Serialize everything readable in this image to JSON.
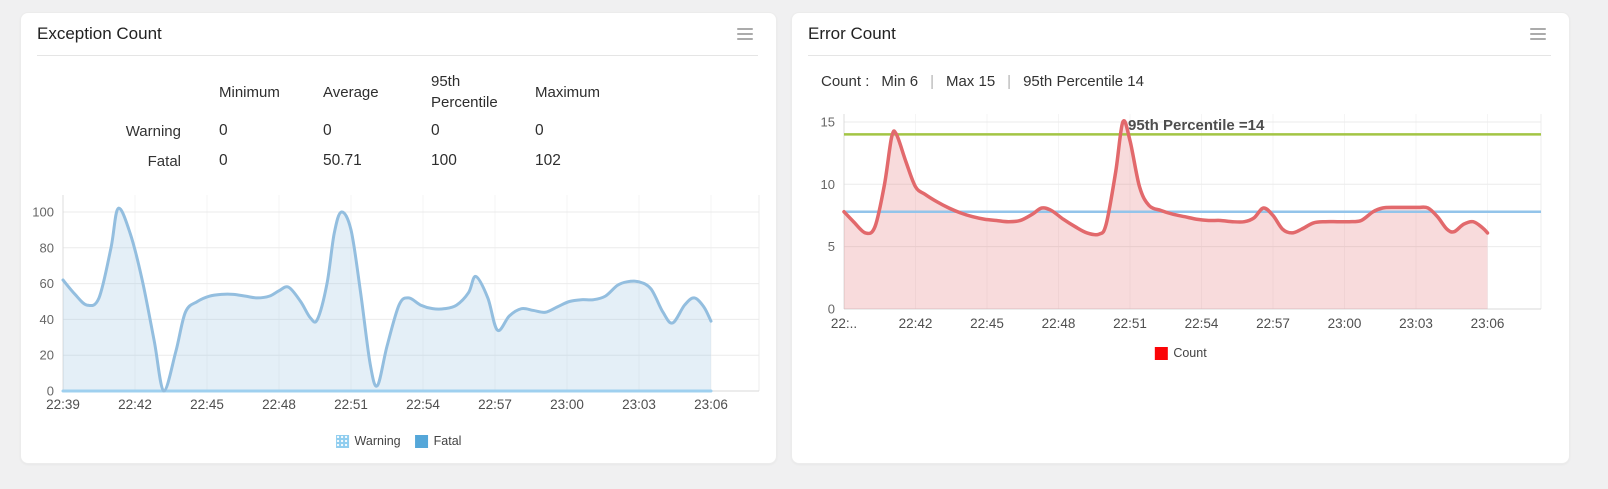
{
  "page": {
    "background": "#f0f0f1"
  },
  "left_panel": {
    "title": "Exception Count",
    "menu_icon": "hamburger-icon",
    "stats": {
      "columns": [
        "Minimum",
        "Average",
        "95th Percentile",
        "Maximum"
      ],
      "rows": [
        {
          "label": "Warning",
          "values": [
            "0",
            "0",
            "0",
            "0"
          ]
        },
        {
          "label": "Fatal",
          "values": [
            "0",
            "50.71",
            "100",
            "102"
          ]
        }
      ]
    },
    "legend": [
      {
        "label": "Warning",
        "color": "#8fcdef"
      },
      {
        "label": "Fatal",
        "color": "#55a7d9"
      }
    ]
  },
  "right_panel": {
    "title": "Error Count",
    "menu_icon": "hamburger-icon",
    "summary": {
      "prefix": "Count :",
      "items": [
        "Min 6",
        "Max 15",
        "95th Percentile 14"
      ],
      "separator": "|"
    },
    "annotation": "95th Percentile =14",
    "legend": [
      {
        "label": "Count",
        "color": "#fb0407"
      }
    ]
  },
  "chart_data": [
    {
      "type": "area",
      "title": "Exception Count",
      "xlabel": "",
      "ylabel": "",
      "x_ticks": [
        "22:39",
        "22:42",
        "22:45",
        "22:48",
        "22:51",
        "22:54",
        "22:57",
        "23:00",
        "23:03",
        "23:06"
      ],
      "y_ticks": [
        0,
        20,
        40,
        60,
        80,
        100
      ],
      "ylim": [
        0,
        110
      ],
      "x_minutes_range": [
        0,
        27
      ],
      "grid": true,
      "legend_position": "bottom",
      "series": [
        {
          "name": "Warning",
          "color": "#9fd0ef",
          "fill": "rgba(159,208,239,0.22)",
          "points": [
            [
              0,
              0
            ],
            [
              4.5,
              0
            ],
            [
              9,
              0
            ],
            [
              13.5,
              0
            ],
            [
              18,
              0
            ],
            [
              22.5,
              0
            ],
            [
              27,
              0
            ]
          ]
        },
        {
          "name": "Fatal",
          "color": "#93bedf",
          "fill": "rgba(147,190,223,0.25)",
          "points": [
            [
              0,
              62
            ],
            [
              0.5,
              54
            ],
            [
              1,
              48
            ],
            [
              1.5,
              52
            ],
            [
              2,
              80
            ],
            [
              2.3,
              102
            ],
            [
              2.8,
              88
            ],
            [
              3.3,
              62
            ],
            [
              3.8,
              28
            ],
            [
              4.2,
              0
            ],
            [
              4.7,
              22
            ],
            [
              5.1,
              44
            ],
            [
              5.6,
              50
            ],
            [
              6.1,
              53
            ],
            [
              6.6,
              54
            ],
            [
              7.1,
              54
            ],
            [
              7.6,
              53
            ],
            [
              8.1,
              52
            ],
            [
              8.6,
              53
            ],
            [
              9,
              56
            ],
            [
              9.4,
              58
            ],
            [
              9.9,
              50
            ],
            [
              10.3,
              41
            ],
            [
              10.6,
              40
            ],
            [
              11,
              60
            ],
            [
              11.3,
              88
            ],
            [
              11.6,
              100
            ],
            [
              12,
              90
            ],
            [
              12.4,
              55
            ],
            [
              12.8,
              15
            ],
            [
              13.1,
              3
            ],
            [
              13.5,
              25
            ],
            [
              14,
              48
            ],
            [
              14.4,
              52
            ],
            [
              14.9,
              48
            ],
            [
              15.4,
              46
            ],
            [
              15.9,
              46
            ],
            [
              16.4,
              48
            ],
            [
              16.9,
              55
            ],
            [
              17.2,
              64
            ],
            [
              17.7,
              52
            ],
            [
              18.1,
              34
            ],
            [
              18.6,
              42
            ],
            [
              19.1,
              46
            ],
            [
              19.6,
              45
            ],
            [
              20.1,
              44
            ],
            [
              20.6,
              47
            ],
            [
              21.1,
              50
            ],
            [
              21.6,
              51
            ],
            [
              22.1,
              51
            ],
            [
              22.6,
              53
            ],
            [
              23.1,
              59
            ],
            [
              23.5,
              61
            ],
            [
              24,
              61
            ],
            [
              24.5,
              57
            ],
            [
              25,
              44
            ],
            [
              25.4,
              38
            ],
            [
              25.9,
              48
            ],
            [
              26.3,
              52
            ],
            [
              26.7,
              47
            ],
            [
              27,
              39
            ]
          ]
        }
      ]
    },
    {
      "type": "area",
      "title": "Error Count",
      "xlabel": "",
      "ylabel": "",
      "x_ticks": [
        "22:..",
        "22:42",
        "22:45",
        "22:48",
        "22:51",
        "22:54",
        "22:57",
        "23:00",
        "23:03",
        "23:06"
      ],
      "y_ticks": [
        0,
        5,
        10,
        15
      ],
      "ylim": [
        0,
        15.8
      ],
      "x_minutes_range": [
        0,
        27
      ],
      "grid": true,
      "legend_position": "bottom",
      "annotation": {
        "text": "95th Percentile =14"
      },
      "ref_lines": [
        {
          "name": "95th-percentile-line",
          "value": 14,
          "color": "#a3c544"
        },
        {
          "name": "average-line",
          "value": 7.8,
          "color": "#93c4ea"
        }
      ],
      "series": [
        {
          "name": "Count",
          "color": "#e2696c",
          "fill": "rgba(224,105,108,0.24)",
          "points": [
            [
              0,
              7.8
            ],
            [
              0.4,
              7
            ],
            [
              0.9,
              6.1
            ],
            [
              1.3,
              6.6
            ],
            [
              1.7,
              10
            ],
            [
              2,
              13.8
            ],
            [
              2.2,
              14
            ],
            [
              2.6,
              11.8
            ],
            [
              3,
              9.8
            ],
            [
              3.4,
              9.2
            ],
            [
              3.9,
              8.6
            ],
            [
              4.4,
              8.1
            ],
            [
              4.9,
              7.7
            ],
            [
              5.4,
              7.4
            ],
            [
              5.9,
              7.2
            ],
            [
              6.4,
              7.1
            ],
            [
              6.9,
              7
            ],
            [
              7.4,
              7.1
            ],
            [
              7.9,
              7.6
            ],
            [
              8.3,
              8.1
            ],
            [
              8.7,
              7.9
            ],
            [
              9.2,
              7.2
            ],
            [
              9.7,
              6.6
            ],
            [
              10.2,
              6.1
            ],
            [
              10.7,
              6
            ],
            [
              11,
              6.8
            ],
            [
              11.4,
              11
            ],
            [
              11.7,
              15
            ],
            [
              12,
              13.5
            ],
            [
              12.4,
              9.8
            ],
            [
              12.8,
              8.3
            ],
            [
              13.3,
              7.9
            ],
            [
              13.8,
              7.6
            ],
            [
              14.3,
              7.4
            ],
            [
              14.8,
              7.2
            ],
            [
              15.3,
              7.1
            ],
            [
              15.8,
              7.1
            ],
            [
              16.3,
              7
            ],
            [
              16.8,
              7
            ],
            [
              17.2,
              7.3
            ],
            [
              17.6,
              8.1
            ],
            [
              18,
              7.5
            ],
            [
              18.4,
              6.4
            ],
            [
              18.8,
              6.1
            ],
            [
              19.2,
              6.4
            ],
            [
              19.7,
              6.9
            ],
            [
              20.2,
              7
            ],
            [
              20.7,
              7
            ],
            [
              21.2,
              7
            ],
            [
              21.7,
              7.1
            ],
            [
              22.2,
              7.8
            ],
            [
              22.6,
              8.1
            ],
            [
              23.1,
              8.15
            ],
            [
              23.6,
              8.15
            ],
            [
              24.1,
              8.15
            ],
            [
              24.5,
              8.1
            ],
            [
              24.9,
              7.4
            ],
            [
              25.3,
              6.4
            ],
            [
              25.6,
              6.2
            ],
            [
              26,
              6.8
            ],
            [
              26.4,
              7
            ],
            [
              26.8,
              6.5
            ],
            [
              27,
              6.1
            ]
          ]
        }
      ]
    }
  ]
}
